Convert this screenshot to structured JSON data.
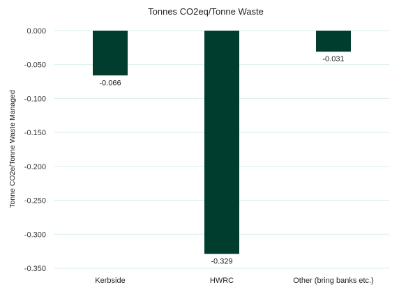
{
  "chart_data": {
    "type": "bar",
    "title": "Tonnes CO2eq/Tonne Waste",
    "xlabel": "",
    "ylabel": "Tonne CO2e/Tonne Waste Managed",
    "categories": [
      "Kerbside",
      "HWRC",
      "Other (bring banks etc.)"
    ],
    "values": [
      -0.066,
      -0.329,
      -0.031
    ],
    "data_labels": [
      "-0.066",
      "-0.329",
      "-0.031"
    ],
    "ylim": [
      -0.35,
      0.0
    ],
    "yticks": [
      0.0,
      -0.05,
      -0.1,
      -0.15,
      -0.2,
      -0.25,
      -0.3,
      -0.35
    ],
    "ytick_labels": [
      "0.000",
      "-0.050",
      "-0.100",
      "-0.150",
      "-0.200",
      "-0.250",
      "-0.300",
      "-0.350"
    ],
    "grid": true,
    "legend": "none",
    "colors": {
      "bar": "#003d2f",
      "grid": "#d6efe8"
    }
  }
}
